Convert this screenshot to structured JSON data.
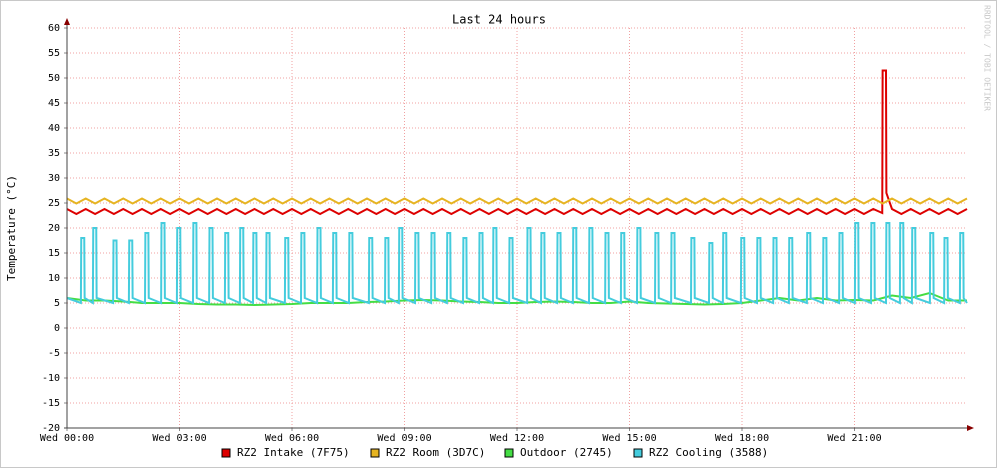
{
  "chart_data": {
    "type": "line",
    "title": "Last 24 hours",
    "y_label": "Temperature (°C)",
    "watermark": "RRDTOOL / TOBI OETIKER",
    "xlim": [
      0,
      24
    ],
    "xticks": [
      {
        "value": 0,
        "label": "Wed 00:00"
      },
      {
        "value": 3,
        "label": "Wed 03:00"
      },
      {
        "value": 6,
        "label": "Wed 06:00"
      },
      {
        "value": 9,
        "label": "Wed 09:00"
      },
      {
        "value": 12,
        "label": "Wed 12:00"
      },
      {
        "value": 15,
        "label": "Wed 15:00"
      },
      {
        "value": 18,
        "label": "Wed 18:00"
      },
      {
        "value": 21,
        "label": "Wed 21:00"
      }
    ],
    "ylim": [
      -20,
      60
    ],
    "yticks": [
      -20,
      -15,
      -10,
      -5,
      0,
      5,
      10,
      15,
      20,
      25,
      30,
      35,
      40,
      45,
      50,
      55,
      60
    ],
    "grid": true,
    "series": [
      {
        "name": "RZ2 Intake (7F75)",
        "color": "#dd0000",
        "x": [
          0,
          0.25,
          0.5,
          0.75,
          1,
          1.25,
          1.5,
          1.75,
          2,
          2.25,
          2.5,
          2.75,
          3,
          3.25,
          3.5,
          3.75,
          4,
          4.25,
          4.5,
          4.75,
          5,
          5.25,
          5.5,
          5.75,
          6,
          6.25,
          6.5,
          6.75,
          7,
          7.25,
          7.5,
          7.75,
          8,
          8.25,
          8.5,
          8.75,
          9,
          9.25,
          9.5,
          9.75,
          10,
          10.25,
          10.5,
          10.75,
          11,
          11.25,
          11.5,
          11.75,
          12,
          12.25,
          12.5,
          12.75,
          13,
          13.25,
          13.5,
          13.75,
          14,
          14.25,
          14.5,
          14.75,
          15,
          15.25,
          15.5,
          15.75,
          16,
          16.25,
          16.5,
          16.75,
          17,
          17.25,
          17.5,
          17.75,
          18,
          18.25,
          18.5,
          18.75,
          19,
          19.25,
          19.5,
          19.75,
          20,
          20.25,
          20.5,
          20.75,
          21,
          21.25,
          21.5,
          21.74,
          21.75,
          21.84,
          21.85,
          22,
          22.25,
          22.5,
          22.75,
          23,
          23.25,
          23.5,
          23.75,
          24
        ],
        "values": [
          23.8,
          22.8,
          23.8,
          22.8,
          23.8,
          22.8,
          23.8,
          22.8,
          23.8,
          22.8,
          23.8,
          22.8,
          23.8,
          22.8,
          23.8,
          22.8,
          23.8,
          22.8,
          23.8,
          22.8,
          23.8,
          22.8,
          23.8,
          22.8,
          23.8,
          22.8,
          23.8,
          22.8,
          23.8,
          22.8,
          23.8,
          22.8,
          23.8,
          22.8,
          23.8,
          22.8,
          23.8,
          22.8,
          23.8,
          22.8,
          23.8,
          22.8,
          23.8,
          22.8,
          23.8,
          22.8,
          23.8,
          22.8,
          23.8,
          22.8,
          23.8,
          22.8,
          23.8,
          22.8,
          23.8,
          22.8,
          23.8,
          22.8,
          23.8,
          22.8,
          23.8,
          22.8,
          23.8,
          22.8,
          23.8,
          22.8,
          23.8,
          22.8,
          23.8,
          22.8,
          23.8,
          22.8,
          23.8,
          22.8,
          23.8,
          22.8,
          23.8,
          22.8,
          23.8,
          22.8,
          23.8,
          22.8,
          23.8,
          22.8,
          23.8,
          22.8,
          23.8,
          23,
          51.5,
          51.5,
          27,
          23.8,
          22.8,
          23.8,
          22.8,
          23.8,
          22.8,
          23.8,
          22.8,
          23.8
        ]
      },
      {
        "name": "RZ2 Room (3D7C)",
        "color": "#e6b422",
        "x": [
          0,
          0.25,
          0.5,
          0.75,
          1,
          1.25,
          1.5,
          1.75,
          2,
          2.25,
          2.5,
          2.75,
          3,
          3.25,
          3.5,
          3.75,
          4,
          4.25,
          4.5,
          4.75,
          5,
          5.25,
          5.5,
          5.75,
          6,
          6.25,
          6.5,
          6.75,
          7,
          7.25,
          7.5,
          7.75,
          8,
          8.25,
          8.5,
          8.75,
          9,
          9.25,
          9.5,
          9.75,
          10,
          10.25,
          10.5,
          10.75,
          11,
          11.25,
          11.5,
          11.75,
          12,
          12.25,
          12.5,
          12.75,
          13,
          13.25,
          13.5,
          13.75,
          14,
          14.25,
          14.5,
          14.75,
          15,
          15.25,
          15.5,
          15.75,
          16,
          16.25,
          16.5,
          16.75,
          17,
          17.25,
          17.5,
          17.75,
          18,
          18.25,
          18.5,
          18.75,
          19,
          19.25,
          19.5,
          19.75,
          20,
          20.25,
          20.5,
          20.75,
          21,
          21.25,
          21.5,
          21.75,
          22,
          22.25,
          22.5,
          22.75,
          23,
          23.25,
          23.5,
          23.75,
          24
        ],
        "values": [
          25.9,
          24.9,
          25.9,
          24.9,
          25.9,
          24.9,
          25.9,
          24.9,
          25.9,
          24.9,
          25.9,
          24.9,
          25.9,
          24.9,
          25.9,
          24.9,
          25.9,
          24.9,
          25.9,
          24.9,
          25.9,
          24.9,
          25.9,
          24.9,
          25.9,
          24.9,
          25.9,
          24.9,
          25.9,
          24.9,
          25.9,
          24.9,
          25.9,
          24.9,
          25.9,
          24.9,
          25.9,
          24.9,
          25.9,
          24.9,
          25.9,
          24.9,
          25.9,
          24.9,
          25.9,
          24.9,
          25.9,
          24.9,
          25.9,
          24.9,
          25.9,
          24.9,
          25.9,
          24.9,
          25.9,
          24.9,
          25.9,
          24.9,
          25.9,
          24.9,
          25.9,
          24.9,
          25.9,
          24.9,
          25.9,
          24.9,
          25.9,
          24.9,
          25.9,
          24.9,
          25.9,
          24.9,
          25.9,
          24.9,
          25.9,
          24.9,
          25.9,
          24.9,
          25.9,
          24.9,
          25.9,
          24.9,
          25.9,
          24.9,
          25.9,
          24.9,
          25.9,
          24.9,
          25.9,
          24.9,
          25.9,
          24.9,
          25.9,
          24.9,
          25.9,
          24.9,
          25.9
        ]
      },
      {
        "name": "Outdoor (2745)",
        "color": "#44dd44",
        "x": [
          0,
          0.5,
          1,
          1.5,
          2,
          2.5,
          3,
          3.5,
          4,
          4.5,
          5,
          5.5,
          6,
          6.5,
          7,
          7.5,
          8,
          8.5,
          9,
          9.5,
          10,
          10.5,
          11,
          11.5,
          12,
          12.5,
          13,
          13.5,
          14,
          14.5,
          15,
          15.5,
          16,
          16.5,
          17,
          17.5,
          18,
          18.5,
          19,
          19.5,
          20,
          20.5,
          21,
          21.5,
          22,
          22.5,
          23,
          23.5,
          24
        ],
        "values": [
          6,
          5.5,
          5.5,
          5.3,
          5,
          5,
          5,
          4.8,
          4.7,
          4.7,
          4.6,
          4.7,
          4.8,
          5,
          5,
          5,
          5.2,
          5.3,
          5.5,
          5.6,
          5.5,
          5.3,
          5.2,
          5,
          5,
          5.2,
          5.3,
          5.2,
          5,
          5,
          5.3,
          5,
          4.9,
          4.8,
          4.7,
          4.8,
          5,
          5.5,
          6,
          5.5,
          6,
          5.5,
          5.6,
          5.5,
          6.5,
          6,
          7,
          5.5,
          5.5
        ]
      },
      {
        "name": "RZ2 Cooling (3588)",
        "color": "#44ccdd",
        "x": [
          0,
          0.37,
          0.38,
          0.46,
          0.47,
          0.69,
          0.7,
          0.78,
          0.79,
          1.23,
          1.24,
          1.32,
          1.33,
          1.65,
          1.66,
          1.74,
          1.75,
          2.08,
          2.09,
          2.17,
          2.18,
          2.51,
          2.52,
          2.6,
          2.61,
          2.93,
          2.94,
          3.02,
          3.03,
          3.36,
          3.37,
          3.45,
          3.46,
          3.79,
          3.8,
          3.88,
          3.89,
          4.21,
          4.22,
          4.3,
          4.31,
          4.61,
          4.62,
          4.7,
          4.71,
          4.96,
          4.97,
          5.05,
          5.06,
          5.31,
          5.32,
          5.4,
          5.41,
          5.81,
          5.82,
          5.9,
          5.91,
          6.24,
          6.25,
          6.33,
          6.34,
          6.67,
          6.68,
          6.76,
          6.77,
          7.09,
          7.1,
          7.18,
          7.19,
          7.52,
          7.53,
          7.61,
          7.62,
          8.05,
          8.06,
          8.14,
          8.15,
          8.48,
          8.49,
          8.57,
          8.58,
          8.85,
          8.86,
          8.94,
          8.95,
          9.28,
          9.29,
          9.37,
          9.38,
          9.71,
          9.72,
          9.8,
          9.81,
          10.13,
          10.14,
          10.22,
          10.23,
          10.56,
          10.57,
          10.65,
          10.66,
          10.99,
          11,
          11.08,
          11.09,
          11.36,
          11.37,
          11.45,
          11.46,
          11.79,
          11.8,
          11.88,
          11.89,
          12.27,
          12.28,
          12.36,
          12.37,
          12.64,
          12.65,
          12.73,
          12.74,
          13.07,
          13.08,
          13.16,
          13.17,
          13.49,
          13.5,
          13.58,
          13.59,
          13.92,
          13.93,
          14.01,
          14.02,
          14.35,
          14.36,
          14.44,
          14.45,
          14.77,
          14.78,
          14.86,
          14.87,
          15.2,
          15.21,
          15.29,
          15.3,
          15.68,
          15.69,
          15.77,
          15.78,
          16.11,
          16.12,
          16.2,
          16.21,
          16.64,
          16.65,
          16.73,
          16.74,
          17.12,
          17.13,
          17.21,
          17.22,
          17.49,
          17.5,
          17.58,
          17.59,
          17.97,
          17.98,
          18.06,
          18.07,
          18.4,
          18.41,
          18.49,
          18.5,
          18.83,
          18.84,
          18.92,
          18.93,
          19.25,
          19.26,
          19.34,
          19.35,
          19.73,
          19.74,
          19.82,
          19.83,
          20.16,
          20.17,
          20.25,
          20.26,
          20.59,
          20.6,
          20.68,
          20.69,
          21.01,
          21.02,
          21.1,
          21.11,
          21.44,
          21.45,
          21.53,
          21.54,
          21.84,
          21.85,
          21.93,
          21.94,
          22.21,
          22.22,
          22.3,
          22.31,
          22.53,
          22.54,
          22.62,
          22.63,
          23.01,
          23.02,
          23.1,
          23.11,
          23.39,
          23.4,
          23.48,
          23.49,
          23.81,
          23.82,
          23.9,
          23.91,
          24
        ],
        "values": [
          6,
          5,
          18,
          18,
          6,
          5,
          20,
          20,
          6,
          5,
          17.5,
          17.5,
          6,
          5,
          17.5,
          17.5,
          6,
          5,
          19,
          19,
          6,
          5,
          21,
          21,
          6,
          5,
          20,
          20,
          6,
          5,
          21,
          21,
          6,
          5,
          20,
          20,
          6,
          5,
          19,
          19,
          6,
          5,
          20,
          20,
          6,
          5,
          19,
          19,
          6,
          5,
          19,
          19,
          6,
          5,
          18,
          18,
          6,
          5,
          19,
          19,
          6,
          5,
          20,
          20,
          6,
          5,
          19,
          19,
          6,
          5,
          19,
          19,
          6,
          5,
          18,
          18,
          6,
          5,
          18,
          18,
          6,
          5,
          20,
          20,
          6,
          5,
          19,
          19,
          6,
          5,
          19,
          19,
          6,
          5,
          19,
          19,
          6,
          5,
          18,
          18,
          6,
          5,
          19,
          19,
          6,
          5,
          20,
          20,
          6,
          5,
          18,
          18,
          6,
          5,
          20,
          20,
          6,
          5,
          19,
          19,
          6,
          5,
          19,
          19,
          6,
          5,
          20,
          20,
          6,
          5,
          20,
          20,
          6,
          5,
          19,
          19,
          6,
          5,
          19,
          19,
          6,
          5,
          20,
          20,
          6,
          5,
          19,
          19,
          6,
          5,
          19,
          19,
          6,
          5,
          18,
          18,
          6,
          5,
          17,
          17,
          6,
          5,
          19,
          19,
          6,
          5,
          18,
          18,
          6,
          5,
          18,
          18,
          6,
          5,
          18,
          18,
          6,
          5,
          18,
          18,
          6,
          5,
          19,
          19,
          6,
          5,
          18,
          18,
          6,
          5,
          19,
          19,
          6,
          5,
          21,
          21,
          6,
          5,
          21,
          21,
          6,
          5,
          21,
          21,
          6,
          5,
          21,
          21,
          6,
          5,
          20,
          20,
          6,
          5,
          19,
          19,
          6,
          5,
          18,
          18,
          6,
          5,
          19,
          19,
          6,
          5
        ]
      }
    ]
  }
}
